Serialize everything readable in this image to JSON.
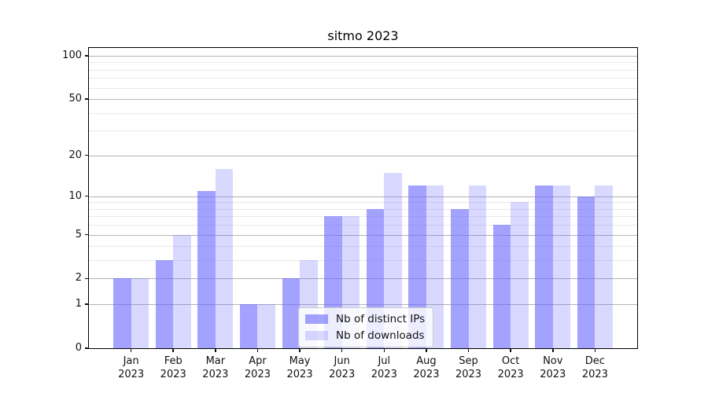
{
  "chart_data": {
    "type": "bar",
    "title": "sitmo 2023",
    "categories": [
      "Jan",
      "Feb",
      "Mar",
      "Apr",
      "May",
      "Jun",
      "Jul",
      "Aug",
      "Sep",
      "Oct",
      "Nov",
      "Dec"
    ],
    "category_year": "2023",
    "series": [
      {
        "name": "Nb of distinct IPs",
        "values": [
          2,
          3,
          11,
          1,
          2,
          7,
          8,
          12,
          8,
          6,
          12,
          10
        ],
        "color": "rgba(102,102,255,0.6)"
      },
      {
        "name": "Nb of downloads",
        "values": [
          2,
          5,
          16,
          1,
          3,
          7,
          15,
          12,
          12,
          9,
          12,
          12
        ],
        "color": "rgba(102,102,255,0.25)"
      }
    ],
    "xlabel": "",
    "ylabel": "",
    "yscale": "log1p",
    "ylim": [
      0,
      113.3
    ],
    "yticks": [
      0,
      1,
      2,
      5,
      10,
      20,
      50,
      100
    ],
    "yticks_minor": [
      3,
      4,
      6,
      7,
      8,
      9,
      30,
      40,
      60,
      70,
      80,
      90
    ],
    "grid": "horizontal",
    "legend_position": "lower center"
  },
  "legend": {
    "items": [
      {
        "label": "Nb of distinct IPs",
        "color": "rgba(102,102,255,0.6)"
      },
      {
        "label": "Nb of downloads",
        "color": "rgba(102,102,255,0.25)"
      }
    ]
  },
  "colors": {
    "bar_dark": "rgba(102,102,255,0.6)",
    "bar_light": "rgba(102,102,255,0.25)",
    "grid_major": "#b3b3b3",
    "grid_minor": "#e9e9e9",
    "axis": "#000000",
    "background": "#ffffff"
  }
}
